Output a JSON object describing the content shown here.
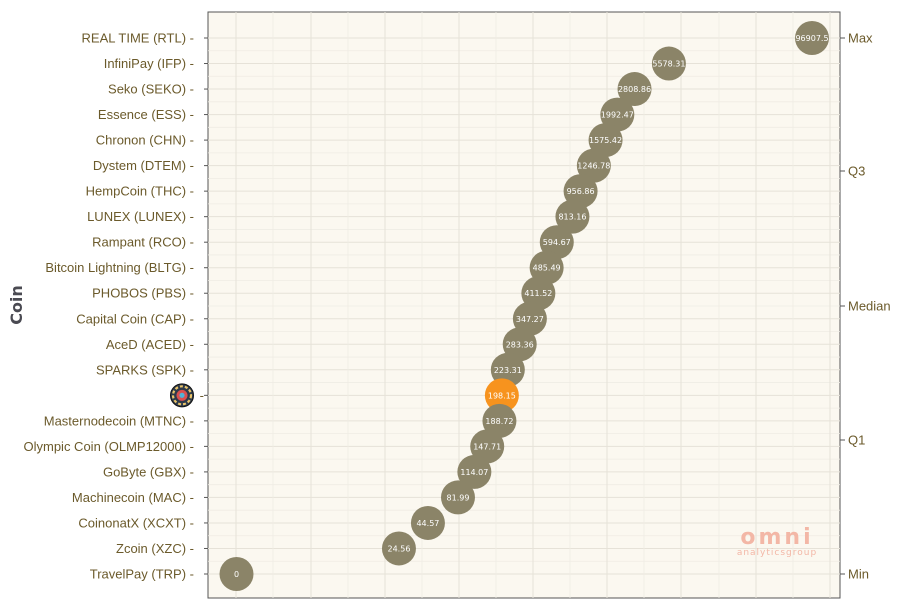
{
  "chart_data": {
    "type": "scatter",
    "title": "",
    "xlabel": "",
    "ylabel": "Coin",
    "x_scale": "log",
    "grid": true,
    "categories": [
      "REAL TIME (RTL)",
      "InfiniPay (IFP)",
      "Seko (SEKO)",
      "Essence (ESS)",
      "Chronon (CHN)",
      "Dystem (DTEM)",
      "HempCoin (THC)",
      "LUNEX (LUNEX)",
      "Rampant (RCO)",
      "Bitcoin Lightning (BLTG)",
      "PHOBOS (PBS)",
      "Capital Coin (CAP)",
      "AceD (ACED)",
      "SPARKS (SPK)",
      "",
      "Masternodecoin (MTNC)",
      "Olympic Coin (OLMP12000)",
      "GoByte (GBX)",
      "Machinecoin (MAC)",
      "CoinonatX (XCXT)",
      "Zcoin (XZC)",
      "TravelPay (TRP)"
    ],
    "values": [
      96907.5,
      5578.31,
      2808.86,
      1992.47,
      1575.42,
      1246.78,
      956.86,
      813.16,
      594.67,
      485.49,
      411.52,
      347.27,
      283.36,
      223.31,
      198.15,
      188.72,
      147.71,
      114.07,
      81.99,
      44.57,
      24.56,
      0
    ],
    "value_labels": [
      "96907.5",
      "5578.31",
      "2808.86",
      "1992.47",
      "1575.42",
      "1246.78",
      "956.86",
      "813.16",
      "594.67",
      "485.49",
      "411.52",
      "347.27",
      "283.36",
      "223.31",
      "198.15",
      "188.72",
      "147.71",
      "114.07",
      "81.99",
      "44.57",
      "24.56",
      "0"
    ],
    "highlight_index": 14,
    "highlight_icon": "coin-logo-icon",
    "point_color": "#8b8468",
    "highlight_color": "#f7931e",
    "quantile_labels": [
      "Max",
      "Q3",
      "Median",
      "Q1",
      "Min"
    ]
  },
  "watermark": {
    "main": "omni",
    "sub": "analyticsgroup"
  }
}
